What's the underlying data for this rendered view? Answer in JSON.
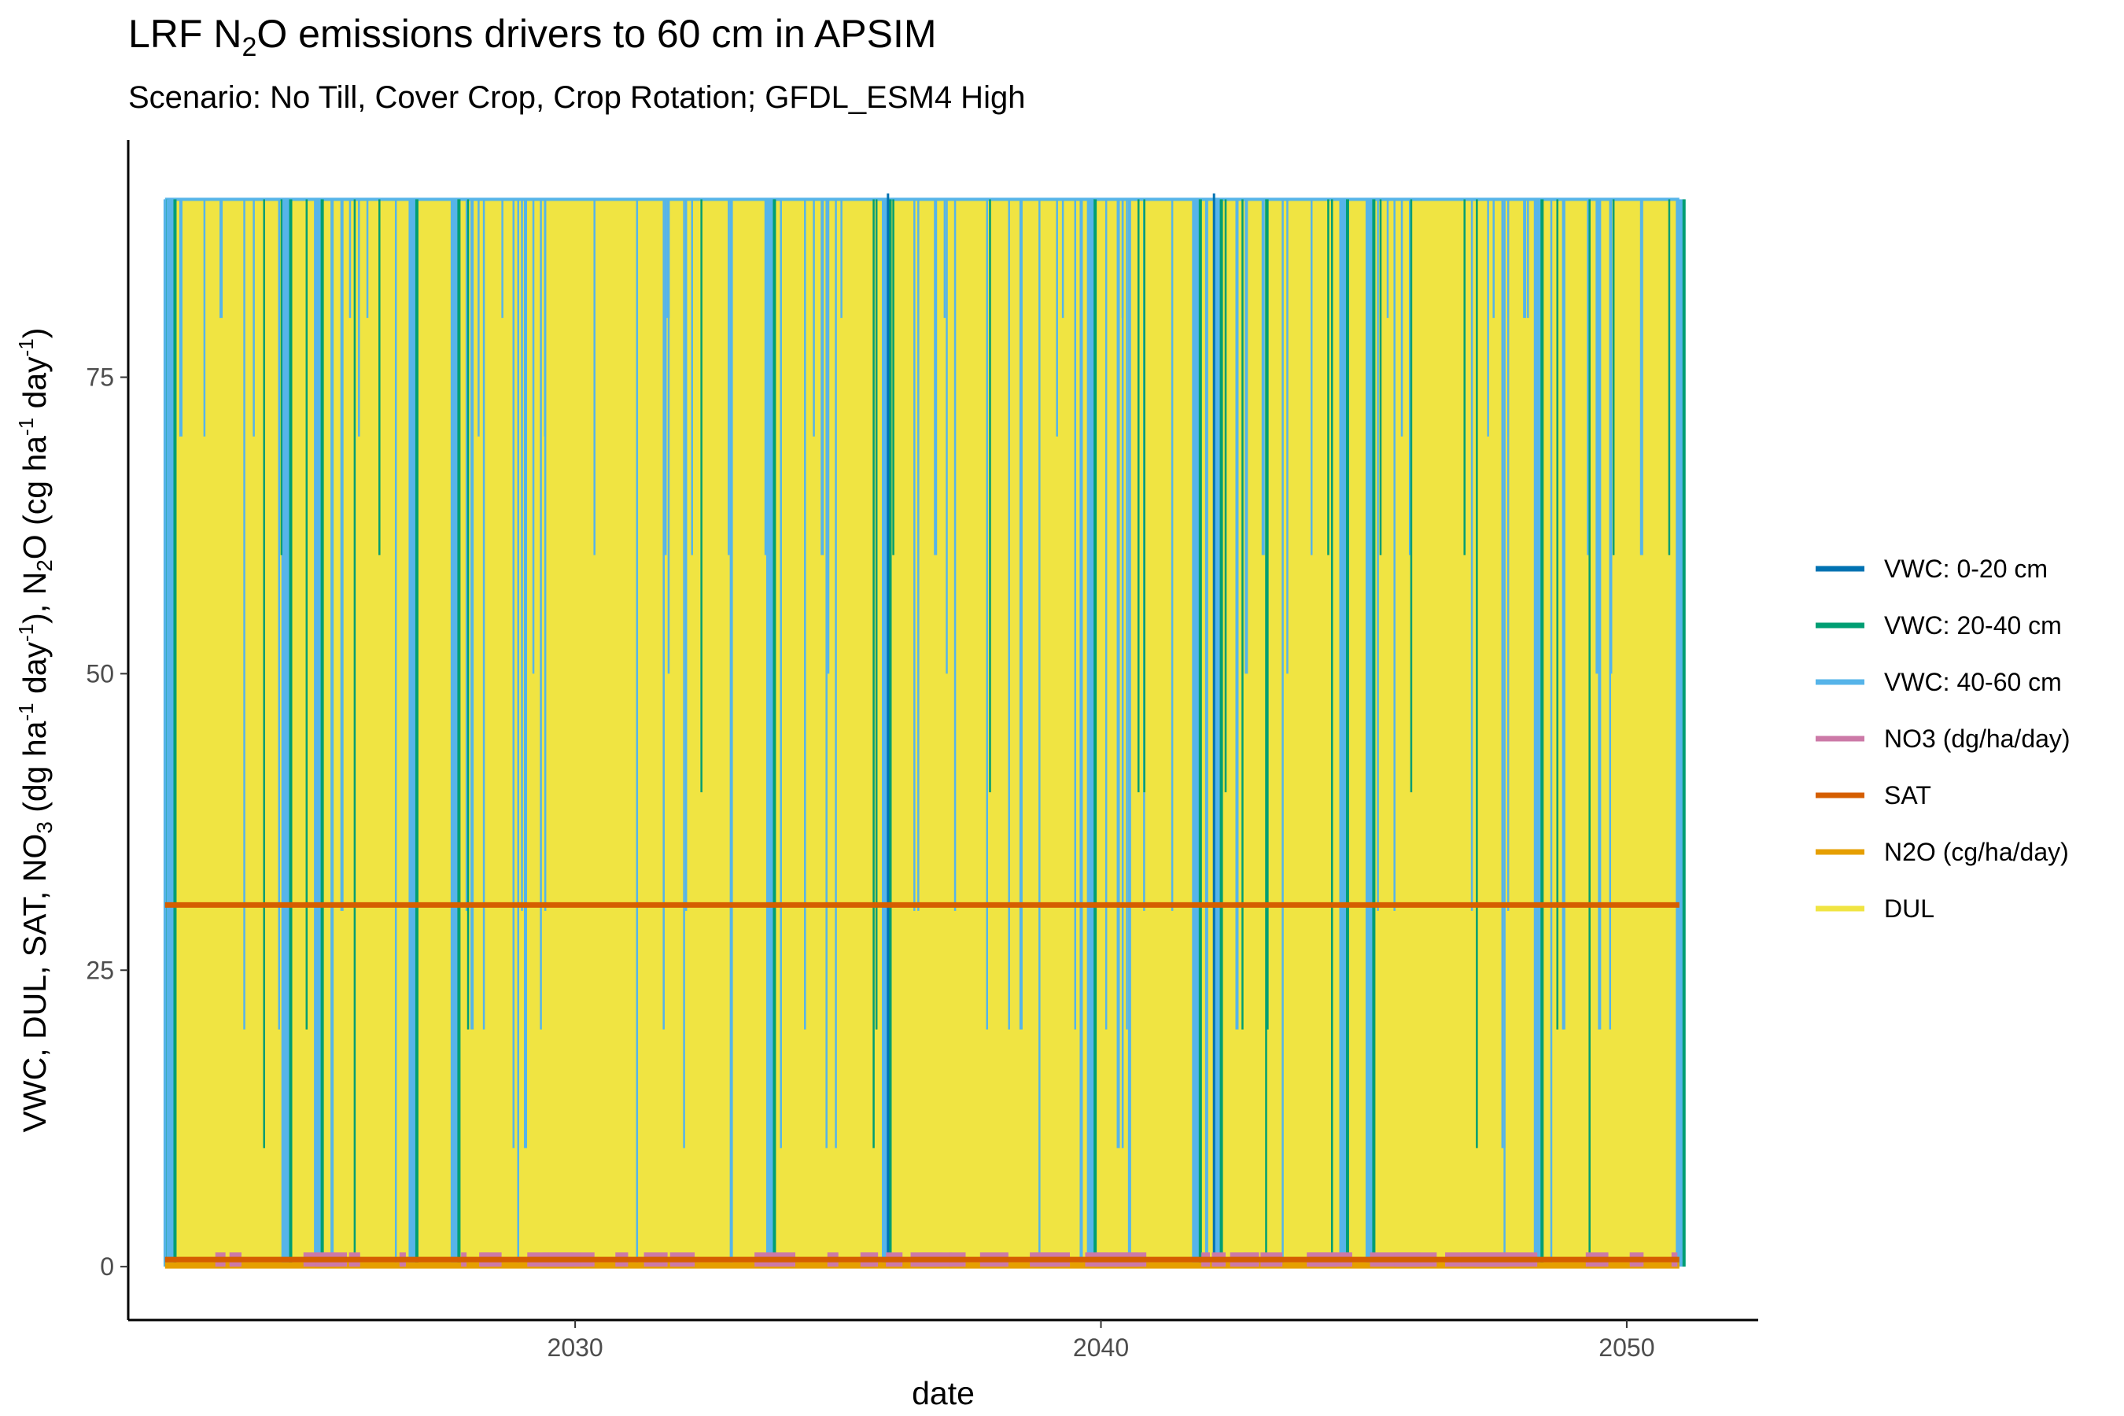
{
  "chart_data": {
    "type": "line",
    "title": "LRF N₂O emissions drivers to 60 cm in APSIM",
    "subtitle": "Scenario: No Till, Cover Crop, Crop Rotation; GFDL_ESM4 High",
    "xlabel": "date",
    "ylabel": "VWC, DUL, SAT, NO₃ (dg ha⁻¹ day⁻¹), N₂O  (cg ha⁻¹ day⁻¹)",
    "xlim": [
      2021.5,
      2052.5
    ],
    "ylim": [
      -4.5,
      95
    ],
    "x_ticks": [
      2030,
      2040,
      2050
    ],
    "x_tick_labels": [
      "2030",
      "2040",
      "2050"
    ],
    "y_ticks": [
      0,
      25,
      50,
      75
    ],
    "y_tick_labels": [
      "0",
      "25",
      "50",
      "75"
    ],
    "x_range_data": [
      2022.2,
      2051.0
    ],
    "grid": false,
    "legend_position": "right",
    "series": [
      {
        "name": "VWC: 0-20 cm",
        "color": "#0072B2",
        "values_range": [
          0,
          90.5
        ]
      },
      {
        "name": "VWC: 20-40 cm",
        "color": "#009E73",
        "values_range": [
          0,
          90
        ]
      },
      {
        "name": "VWC: 40-60 cm",
        "color": "#56B4E9",
        "values_range": [
          0,
          90
        ]
      },
      {
        "name": "NO3 (dg/ha/day)",
        "color": "#CC79A7",
        "values_range": [
          0,
          1.2
        ]
      },
      {
        "name": "SAT",
        "color": "#D55E00",
        "values": [
          30.5,
          0.6
        ]
      },
      {
        "name": "N2O (cg/ha/day)",
        "color": "#E69F00",
        "values_range": [
          0,
          0.3
        ]
      },
      {
        "name": "DUL",
        "color": "#F0E442",
        "values_range": [
          0,
          90
        ]
      }
    ],
    "vwc_spikes": [
      {
        "x": 2022.3,
        "low": 0,
        "high": 10
      },
      {
        "x": 2024.5,
        "low": 0,
        "high": 40
      },
      {
        "x": 2025.1,
        "low": 0,
        "high": 60
      },
      {
        "x": 2026.9,
        "low": 0,
        "high": 90
      },
      {
        "x": 2027.7,
        "low": 0,
        "high": 50
      },
      {
        "x": 2033.7,
        "low": 0,
        "high": 70
      },
      {
        "x": 2035.9,
        "low": 0,
        "high": 90
      },
      {
        "x": 2039.8,
        "low": 0,
        "high": 60
      },
      {
        "x": 2041.8,
        "low": 0,
        "high": 40
      },
      {
        "x": 2042.2,
        "low": 0,
        "high": 90
      },
      {
        "x": 2044.6,
        "low": 0,
        "high": 60
      },
      {
        "x": 2045.1,
        "low": 0,
        "high": 50
      },
      {
        "x": 2048.3,
        "low": 0,
        "high": 20
      },
      {
        "x": 2051.0,
        "low": 0,
        "high": 50
      }
    ]
  }
}
